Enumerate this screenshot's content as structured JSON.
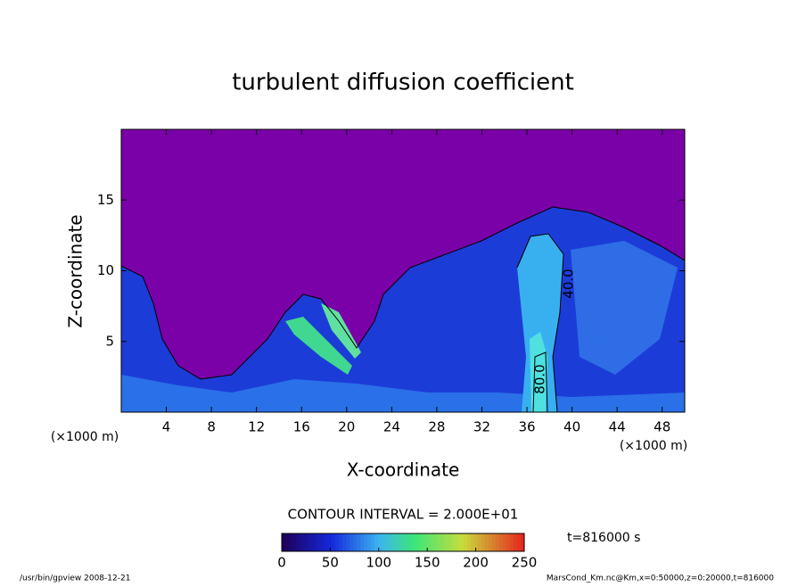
{
  "chart_data": {
    "type": "contour",
    "title": "turbulent diffusion coefficient",
    "x_label": "X-coordinate",
    "y_label": "Z-coordinate",
    "x_unit": "(×1000 m)",
    "y_unit": "(×1000 m)",
    "xlim": [
      0,
      50
    ],
    "xticks": [
      4,
      8,
      12,
      16,
      20,
      24,
      28,
      32,
      36,
      40,
      44,
      48
    ],
    "ylim": [
      0,
      20
    ],
    "yticks": [
      5,
      10,
      15
    ],
    "contour_interval": "CONTOUR INTERVAL = 2.000E+01",
    "contour_labels": [
      {
        "value": 40,
        "label": "40.0"
      },
      {
        "value": 80,
        "label": "80.0"
      }
    ],
    "colorbar": {
      "lim": [
        0,
        250
      ],
      "ticks": [
        0,
        50,
        100,
        150,
        200,
        250
      ]
    },
    "time_label": "t=816000 s",
    "footer_left": "/usr/bin/gpview   2008-12-21",
    "footer_right": "MarsCond_Km.nc@Km,x=0:50000,z=0:20000,t=816000"
  }
}
